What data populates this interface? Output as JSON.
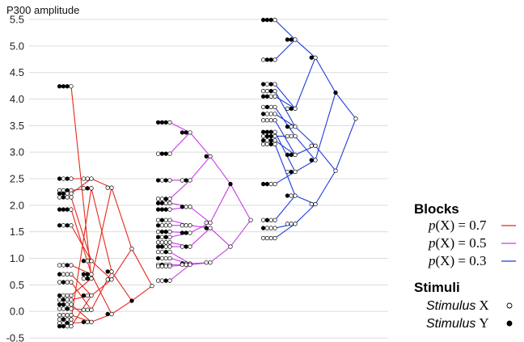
{
  "chart_data": {
    "type": "line",
    "title": "",
    "ylabel": "P300 amplitude",
    "xlabel": "",
    "ylim": [
      -0.5,
      5.5
    ],
    "yticks": [
      "5.5",
      "5.0",
      "4.5",
      "4.0",
      "3.5",
      "3.0",
      "2.5",
      "2.0",
      "1.5",
      "1.0",
      "0.5",
      "0.0",
      "-0.5"
    ],
    "grid": "horizontal",
    "legend": {
      "blocks_title": "Blocks",
      "stimuli_title": "Stimuli",
      "p_prefix": "p",
      "p_middle": "(X) = ",
      "blocks": [
        {
          "p": "0.7",
          "color": "#e8281c"
        },
        {
          "p": "0.5",
          "color": "#c83ce6"
        },
        {
          "p": "0.3",
          "color": "#1e3cdc"
        }
      ],
      "stimuli": [
        {
          "name": "Stimulus",
          "symbol": "X",
          "marker": "open"
        },
        {
          "name": "Stimulus",
          "symbol": "Y",
          "marker": "filled"
        }
      ]
    },
    "series": [
      {
        "block": "0.7",
        "color": "#e8281c",
        "nodes": [
          {
            "x": 0,
            "y": 4.24,
            "seq": "YYYX"
          },
          {
            "x": 0,
            "y": 2.5,
            "seq": "YXYX"
          },
          {
            "x": 0,
            "y": 2.28,
            "seq": "XXYX"
          },
          {
            "x": 0,
            "y": 2.22,
            "seq": "YYXX"
          },
          {
            "x": 0,
            "y": 2.15,
            "seq": "XYXX"
          },
          {
            "x": 0,
            "y": 1.92,
            "seq": "YYYX"
          },
          {
            "x": 0,
            "y": 1.62,
            "seq": "YXYX"
          },
          {
            "x": 0,
            "y": 0.87,
            "seq": "XXYX"
          },
          {
            "x": 0,
            "y": 0.7,
            "seq": "YXXX"
          },
          {
            "x": 0,
            "y": 0.55,
            "seq": "XYXX"
          },
          {
            "x": 0,
            "y": 0.3,
            "seq": "YXXX"
          },
          {
            "x": 0,
            "y": 0.22,
            "seq": "XYXX"
          },
          {
            "x": 0,
            "y": 0.13,
            "seq": "YYXX"
          },
          {
            "x": 0,
            "y": 0.05,
            "seq": "XXYX"
          },
          {
            "x": 0,
            "y": -0.07,
            "seq": "XXXX"
          },
          {
            "x": 0,
            "y": -0.15,
            "seq": "XYXX"
          },
          {
            "x": 0,
            "y": -0.22,
            "seq": "XXYX"
          },
          {
            "x": 0,
            "y": -0.28,
            "seq": "YYXX"
          },
          {
            "x": 1,
            "y": 2.5,
            "seq": "XXX"
          },
          {
            "x": 1,
            "y": 2.32,
            "seq": "XYX"
          },
          {
            "x": 1,
            "y": 0.95,
            "seq": "YXX"
          },
          {
            "x": 1,
            "y": 0.7,
            "seq": "YYX"
          },
          {
            "x": 1,
            "y": 0.62,
            "seq": "XYX"
          },
          {
            "x": 1,
            "y": 0.3,
            "seq": "YXX"
          },
          {
            "x": 1,
            "y": 0.03,
            "seq": "XXX"
          },
          {
            "x": 1,
            "y": -0.2,
            "seq": "YXX"
          },
          {
            "x": 2,
            "y": 2.33,
            "seq": "XX"
          },
          {
            "x": 2,
            "y": 0.75,
            "seq": "YX"
          },
          {
            "x": 2,
            "y": 0.6,
            "seq": "XX"
          },
          {
            "x": 2,
            "y": -0.05,
            "seq": "YX"
          },
          {
            "x": 3,
            "y": 1.18,
            "seq": "X"
          },
          {
            "x": 3,
            "y": 0.2,
            "seq": "Y"
          },
          {
            "x": 4,
            "y": 0.48,
            "seq": "root"
          }
        ],
        "edges": [
          [
            0,
            22
          ],
          [
            1,
            18
          ],
          [
            2,
            19
          ],
          [
            3,
            18
          ],
          [
            4,
            20
          ],
          [
            5,
            21
          ],
          [
            6,
            20
          ],
          [
            7,
            21
          ],
          [
            8,
            23
          ],
          [
            9,
            24
          ],
          [
            10,
            22
          ],
          [
            11,
            23
          ],
          [
            12,
            25
          ],
          [
            13,
            24
          ],
          [
            14,
            25
          ],
          [
            15,
            19
          ],
          [
            16,
            25
          ],
          [
            17,
            23
          ],
          [
            18,
            26
          ],
          [
            19,
            27
          ],
          [
            20,
            28
          ],
          [
            21,
            29
          ],
          [
            22,
            26
          ],
          [
            23,
            28
          ],
          [
            24,
            27
          ],
          [
            25,
            29
          ],
          [
            26,
            30
          ],
          [
            27,
            31
          ],
          [
            28,
            30
          ],
          [
            29,
            31
          ],
          [
            30,
            32
          ],
          [
            31,
            32
          ]
        ]
      },
      {
        "block": "0.5",
        "color": "#c83ce6",
        "nodes": [
          {
            "x": 0,
            "y": 3.56,
            "seq": "YYYX"
          },
          {
            "x": 0,
            "y": 2.97,
            "seq": "XYYX"
          },
          {
            "x": 0,
            "y": 2.47,
            "seq": "YXYX"
          },
          {
            "x": 0,
            "y": 2.12,
            "seq": "XXYX"
          },
          {
            "x": 0,
            "y": 2.04,
            "seq": "YYXX"
          },
          {
            "x": 0,
            "y": 1.92,
            "seq": "YYYX"
          },
          {
            "x": 0,
            "y": 1.72,
            "seq": "XYXX"
          },
          {
            "x": 0,
            "y": 1.62,
            "seq": "YXXX"
          },
          {
            "x": 0,
            "y": 1.5,
            "seq": "XYYX"
          },
          {
            "x": 0,
            "y": 1.4,
            "seq": "YXYX"
          },
          {
            "x": 0,
            "y": 1.3,
            "seq": "XXXX"
          },
          {
            "x": 0,
            "y": 1.22,
            "seq": "YYXX"
          },
          {
            "x": 0,
            "y": 1.12,
            "seq": "XXYX"
          },
          {
            "x": 0,
            "y": 1.0,
            "seq": "YXXX"
          },
          {
            "x": 0,
            "y": 0.88,
            "seq": "XYXX"
          },
          {
            "x": 0,
            "y": 0.85,
            "seq": "XXXX"
          },
          {
            "x": 0,
            "y": 0.58,
            "seq": "XXYX"
          },
          {
            "x": 1,
            "y": 3.37,
            "seq": "YYX"
          },
          {
            "x": 1,
            "y": 2.47,
            "seq": "XYX"
          },
          {
            "x": 1,
            "y": 1.97,
            "seq": "YXX"
          },
          {
            "x": 1,
            "y": 1.62,
            "seq": "XXX"
          },
          {
            "x": 1,
            "y": 1.48,
            "seq": "YYX"
          },
          {
            "x": 1,
            "y": 1.22,
            "seq": "XYX"
          },
          {
            "x": 1,
            "y": 0.9,
            "seq": "YXX"
          },
          {
            "x": 1,
            "y": 0.88,
            "seq": "XXX"
          },
          {
            "x": 2,
            "y": 2.92,
            "seq": "YX"
          },
          {
            "x": 2,
            "y": 1.67,
            "seq": "XX"
          },
          {
            "x": 2,
            "y": 1.57,
            "seq": "YX"
          },
          {
            "x": 2,
            "y": 0.92,
            "seq": "XX"
          },
          {
            "x": 3,
            "y": 2.4,
            "seq": "Y"
          },
          {
            "x": 3,
            "y": 1.22,
            "seq": "X"
          },
          {
            "x": 4,
            "y": 1.72,
            "seq": "root"
          }
        ],
        "edges": [
          [
            0,
            17
          ],
          [
            1,
            17
          ],
          [
            2,
            18
          ],
          [
            3,
            18
          ],
          [
            4,
            19
          ],
          [
            5,
            19
          ],
          [
            6,
            20
          ],
          [
            7,
            20
          ],
          [
            8,
            21
          ],
          [
            9,
            21
          ],
          [
            10,
            22
          ],
          [
            11,
            22
          ],
          [
            12,
            23
          ],
          [
            13,
            23
          ],
          [
            14,
            24
          ],
          [
            15,
            24
          ],
          [
            16,
            24
          ],
          [
            17,
            25
          ],
          [
            18,
            25
          ],
          [
            19,
            26
          ],
          [
            20,
            27
          ],
          [
            21,
            26
          ],
          [
            22,
            27
          ],
          [
            23,
            28
          ],
          [
            24,
            28
          ],
          [
            25,
            29
          ],
          [
            26,
            29
          ],
          [
            27,
            30
          ],
          [
            28,
            30
          ],
          [
            29,
            31
          ],
          [
            30,
            31
          ]
        ]
      },
      {
        "block": "0.3",
        "color": "#1e3cdc",
        "nodes": [
          {
            "x": 0,
            "y": 5.49,
            "seq": "YYYX"
          },
          {
            "x": 0,
            "y": 4.74,
            "seq": "XYYX"
          },
          {
            "x": 0,
            "y": 4.28,
            "seq": "YXYX"
          },
          {
            "x": 0,
            "y": 4.15,
            "seq": "XXYX"
          },
          {
            "x": 0,
            "y": 4.05,
            "seq": "YYXX"
          },
          {
            "x": 0,
            "y": 3.85,
            "seq": "XYXX"
          },
          {
            "x": 0,
            "y": 3.72,
            "seq": "YXXX"
          },
          {
            "x": 0,
            "y": 3.6,
            "seq": "XXXX"
          },
          {
            "x": 0,
            "y": 3.38,
            "seq": "YYYX"
          },
          {
            "x": 0,
            "y": 3.3,
            "seq": "XYYX"
          },
          {
            "x": 0,
            "y": 3.22,
            "seq": "YXYX"
          },
          {
            "x": 0,
            "y": 3.15,
            "seq": "XXYX"
          },
          {
            "x": 0,
            "y": 2.4,
            "seq": "YYXX"
          },
          {
            "x": 0,
            "y": 1.72,
            "seq": "XYXX"
          },
          {
            "x": 0,
            "y": 1.57,
            "seq": "YXXX"
          },
          {
            "x": 0,
            "y": 1.38,
            "seq": "XXXX"
          },
          {
            "x": 1,
            "y": 5.12,
            "seq": "YYX"
          },
          {
            "x": 1,
            "y": 3.82,
            "seq": "XYX"
          },
          {
            "x": 1,
            "y": 3.48,
            "seq": "YXX"
          },
          {
            "x": 1,
            "y": 3.3,
            "seq": "XXX"
          },
          {
            "x": 1,
            "y": 2.95,
            "seq": "YYX"
          },
          {
            "x": 1,
            "y": 2.63,
            "seq": "XYX"
          },
          {
            "x": 1,
            "y": 2.18,
            "seq": "YXX"
          },
          {
            "x": 1,
            "y": 1.65,
            "seq": "XXX"
          },
          {
            "x": 2,
            "y": 4.78,
            "seq": "YX"
          },
          {
            "x": 2,
            "y": 3.12,
            "seq": "XX"
          },
          {
            "x": 2,
            "y": 2.85,
            "seq": "YX"
          },
          {
            "x": 2,
            "y": 2.02,
            "seq": "XX"
          },
          {
            "x": 3,
            "y": 4.12,
            "seq": "Y"
          },
          {
            "x": 3,
            "y": 2.65,
            "seq": "X"
          },
          {
            "x": 4,
            "y": 3.63,
            "seq": "root"
          }
        ],
        "edges": [
          [
            0,
            16
          ],
          [
            1,
            16
          ],
          [
            2,
            17
          ],
          [
            3,
            18
          ],
          [
            4,
            17
          ],
          [
            5,
            19
          ],
          [
            6,
            18
          ],
          [
            7,
            20
          ],
          [
            8,
            21
          ],
          [
            9,
            19
          ],
          [
            10,
            20
          ],
          [
            11,
            22
          ],
          [
            12,
            21
          ],
          [
            13,
            22
          ],
          [
            14,
            23
          ],
          [
            15,
            23
          ],
          [
            16,
            24
          ],
          [
            17,
            24
          ],
          [
            18,
            25
          ],
          [
            19,
            26
          ],
          [
            20,
            25
          ],
          [
            21,
            26
          ],
          [
            22,
            27
          ],
          [
            23,
            27
          ],
          [
            24,
            28
          ],
          [
            25,
            29
          ],
          [
            26,
            28
          ],
          [
            27,
            29
          ],
          [
            28,
            30
          ],
          [
            29,
            30
          ]
        ]
      }
    ]
  }
}
